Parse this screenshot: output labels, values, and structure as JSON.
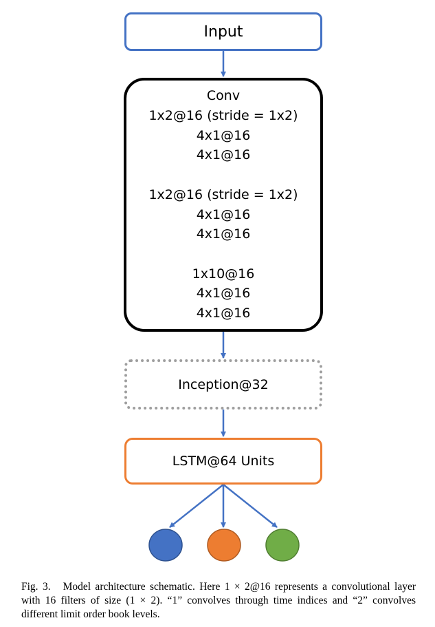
{
  "nodes": {
    "input": "Input",
    "conv": {
      "lines": [
        "Conv",
        "1x2@16 (stride = 1x2)",
        "4x1@16",
        "4x1@16",
        "",
        "1x2@16 (stride = 1x2)",
        "4x1@16",
        "4x1@16",
        "",
        "1x10@16",
        "4x1@16",
        "4x1@16"
      ]
    },
    "inception": "Inception@32",
    "lstm": "LSTM@64 Units"
  },
  "outputs": [
    {
      "color": "#4472c4"
    },
    {
      "color": "#ed7d31"
    },
    {
      "color": "#70ad47"
    }
  ],
  "colors": {
    "arrow": "#4472c4",
    "input_border": "#4472c4",
    "conv_border": "#000000",
    "inception_border": "#9e9e9e",
    "lstm_border": "#ed7d31"
  },
  "caption": {
    "label": "Fig. 3.",
    "text": "Model architecture schematic. Here 1 × 2@16 represents a convolutional layer with 16 filters of size (1 × 2). “1” convolves through time indices and “2” convolves different limit order book levels."
  }
}
